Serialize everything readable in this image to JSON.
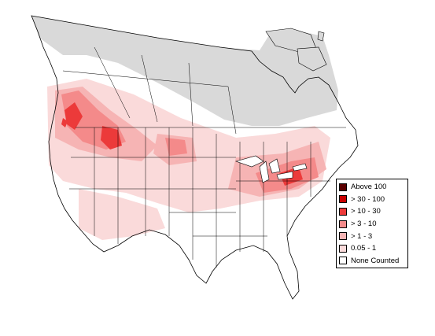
{
  "map": {
    "colors": {
      "no_data": "#d9d9d9",
      "land": "#ffffff",
      "outline": "#000000"
    }
  },
  "legend": {
    "items": [
      {
        "label": "Above 100",
        "color": "#5a0000"
      },
      {
        "label": "> 30 - 100",
        "color": "#c80000"
      },
      {
        "label": "> 10 - 30",
        "color": "#ec3a3a"
      },
      {
        "label": "> 3 - 10",
        "color": "#f48a8a"
      },
      {
        "label": "> 1 - 3",
        "color": "#f6b4b4"
      },
      {
        "label": "0.05 - 1",
        "color": "#fadada"
      },
      {
        "label": "None Counted",
        "color": "#ffffff"
      }
    ]
  }
}
